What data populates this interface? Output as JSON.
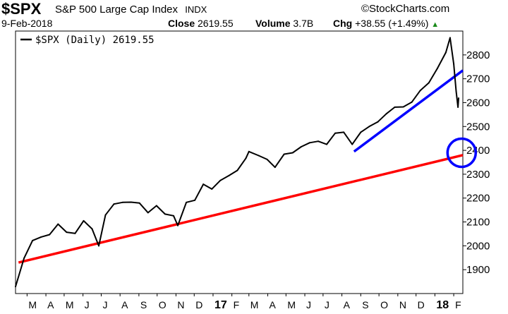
{
  "header": {
    "ticker": "$SPX",
    "index_name": "S&P 500 Large Cap Index",
    "exchange": "INDX",
    "logo": "©StockCharts.com",
    "date": "9-Feb-2018",
    "close_label": "Close",
    "close_value": "2619.55",
    "volume_label": "Volume",
    "volume_value": "3.7B",
    "chg_label": "Chg",
    "chg_value": "+38.55 (+1.49%)"
  },
  "chart_data": {
    "type": "line",
    "legend": "$SPX (Daily) 2619.55",
    "ylim": [
      1800,
      2900
    ],
    "y_ticks": [
      1900,
      2000,
      2100,
      2200,
      2300,
      2400,
      2500,
      2600,
      2700,
      2800
    ],
    "x_ticks": [
      "M",
      "A",
      "M",
      "J",
      "J",
      "A",
      "S",
      "O",
      "N",
      "D",
      "17",
      "F",
      "M",
      "A",
      "M",
      "J",
      "J",
      "A",
      "S",
      "O",
      "N",
      "D",
      "18",
      "F"
    ],
    "x": [
      "2016-02-11",
      "2016-02-25",
      "2016-03-10",
      "2016-03-24",
      "2016-04-07",
      "2016-04-21",
      "2016-05-05",
      "2016-05-19",
      "2016-06-02",
      "2016-06-16",
      "2016-06-27",
      "2016-07-08",
      "2016-07-22",
      "2016-08-05",
      "2016-08-19",
      "2016-09-02",
      "2016-09-16",
      "2016-09-30",
      "2016-10-14",
      "2016-10-28",
      "2016-11-04",
      "2016-11-18",
      "2016-12-02",
      "2016-12-16",
      "2016-12-30",
      "2017-01-13",
      "2017-01-27",
      "2017-02-10",
      "2017-02-24",
      "2017-03-01",
      "2017-03-17",
      "2017-03-31",
      "2017-04-13",
      "2017-04-28",
      "2017-05-12",
      "2017-05-26",
      "2017-06-09",
      "2017-06-23",
      "2017-07-07",
      "2017-07-21",
      "2017-08-04",
      "2017-08-18",
      "2017-09-01",
      "2017-09-15",
      "2017-09-29",
      "2017-10-13",
      "2017-10-27",
      "2017-11-10",
      "2017-11-24",
      "2017-12-08",
      "2017-12-22",
      "2018-01-05",
      "2018-01-19",
      "2018-01-26",
      "2018-02-01",
      "2018-02-05",
      "2018-02-08",
      "2018-02-09"
    ],
    "series": [
      {
        "name": "$SPX (Daily)",
        "color": "#000000",
        "values": [
          1829,
          1948,
          2022,
          2037,
          2047,
          2091,
          2057,
          2052,
          2105,
          2071,
          2000,
          2129,
          2175,
          2182,
          2183,
          2179,
          2139,
          2168,
          2133,
          2126,
          2085,
          2182,
          2191,
          2258,
          2238,
          2274,
          2294,
          2316,
          2367,
          2395,
          2378,
          2362,
          2329,
          2384,
          2390,
          2415,
          2432,
          2438,
          2425,
          2472,
          2476,
          2425,
          2476,
          2500,
          2519,
          2553,
          2581,
          2582,
          2602,
          2651,
          2683,
          2743,
          2810,
          2872,
          2762,
          2648,
          2581,
          2619
        ]
      }
    ],
    "trendlines": [
      {
        "name": "long-term-support",
        "color": "#ff0000",
        "from": [
          "2016-02-16",
          1930
        ],
        "to": [
          "2018-02-16",
          2380
        ]
      },
      {
        "name": "short-term-support",
        "color": "#0000ff",
        "from": [
          "2017-08-21",
          2395
        ],
        "to": [
          "2018-02-16",
          2735
        ]
      }
    ],
    "highlight_circle": {
      "color": "#0000ff",
      "at": [
        "2018-02-14",
        2390
      ]
    },
    "grid": false,
    "legend_position": "top-left"
  }
}
